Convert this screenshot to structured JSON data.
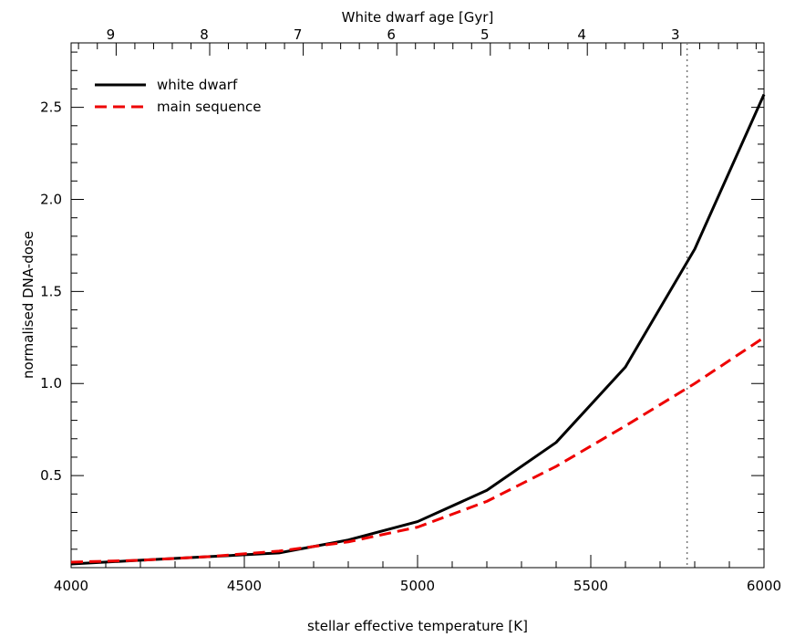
{
  "chart_data": {
    "type": "line",
    "title": "",
    "xlabel": "stellar effective temperature [K]",
    "ylabel": "normalised DNA-dose",
    "top_xlabel": "White dwarf age [Gyr]",
    "xlim": [
      4000,
      6000
    ],
    "ylim": [
      0.0,
      2.85
    ],
    "xticks": [
      4000,
      4500,
      5000,
      5500,
      6000
    ],
    "xtick_labels": [
      "4000",
      "4500",
      "5000",
      "5500",
      "6000"
    ],
    "yticks": [
      0.5,
      1.0,
      1.5,
      2.0,
      2.5
    ],
    "ytick_labels": [
      "0.5",
      "1.0",
      "1.5",
      "2.0",
      "2.5"
    ],
    "top_ticks": [
      {
        "label": "9",
        "temperature": 4130
      },
      {
        "label": "8",
        "temperature": 4400
      },
      {
        "label": "7",
        "temperature": 4670
      },
      {
        "label": "6",
        "temperature": 4940
      },
      {
        "label": "5",
        "temperature": 5210
      },
      {
        "label": "4",
        "temperature": 5490
      },
      {
        "label": "3",
        "temperature": 5760
      }
    ],
    "vline": {
      "x": 5778,
      "style": "dotted",
      "color": "#777777"
    },
    "legend_position": "top-left",
    "grid": false,
    "series": [
      {
        "name": "white dwarf",
        "color": "#000000",
        "style": "solid",
        "x": [
          4000,
          4200,
          4400,
          4600,
          4800,
          5000,
          5200,
          5400,
          5600,
          5800,
          6000
        ],
        "y": [
          0.02,
          0.04,
          0.06,
          0.08,
          0.15,
          0.25,
          0.42,
          0.68,
          1.09,
          1.73,
          2.57
        ]
      },
      {
        "name": "main sequence",
        "color": "#ee0000",
        "style": "dashed",
        "x": [
          4000,
          4200,
          4400,
          4600,
          4800,
          5000,
          5200,
          5400,
          5600,
          5800,
          6000
        ],
        "y": [
          0.03,
          0.04,
          0.06,
          0.09,
          0.14,
          0.22,
          0.36,
          0.55,
          0.77,
          1.0,
          1.25
        ]
      }
    ]
  }
}
